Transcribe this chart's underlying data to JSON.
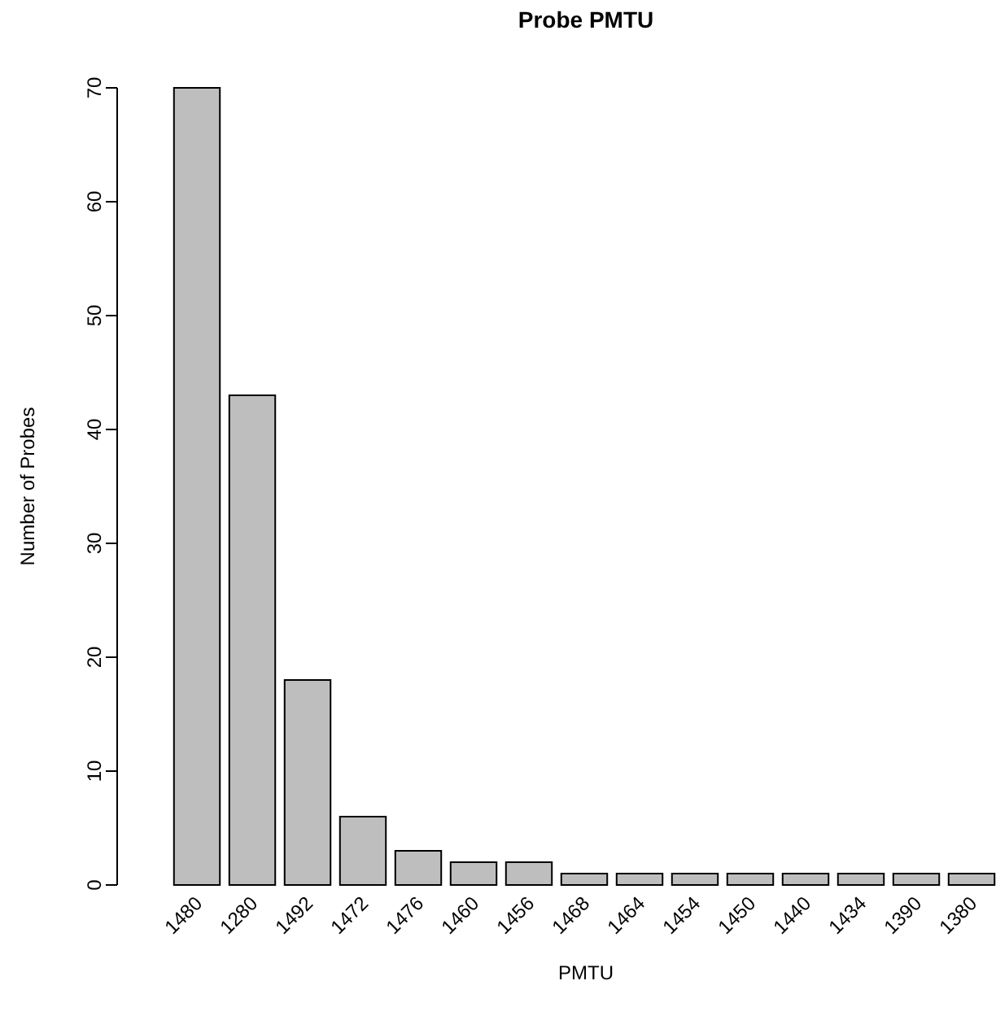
{
  "chart_data": {
    "type": "bar",
    "title": "Probe PMTU",
    "xlabel": "PMTU",
    "ylabel": "Number of Probes",
    "categories": [
      "1480",
      "1280",
      "1492",
      "1472",
      "1476",
      "1460",
      "1456",
      "1468",
      "1464",
      "1454",
      "1450",
      "1440",
      "1434",
      "1390",
      "1380"
    ],
    "values": [
      70,
      43,
      18,
      6,
      3,
      2,
      2,
      1,
      1,
      1,
      1,
      1,
      1,
      1,
      1
    ],
    "color": "#bebebe",
    "ylim": [
      0,
      70
    ],
    "yticks": [
      0,
      10,
      20,
      30,
      40,
      50,
      60,
      70
    ],
    "grid": false
  }
}
